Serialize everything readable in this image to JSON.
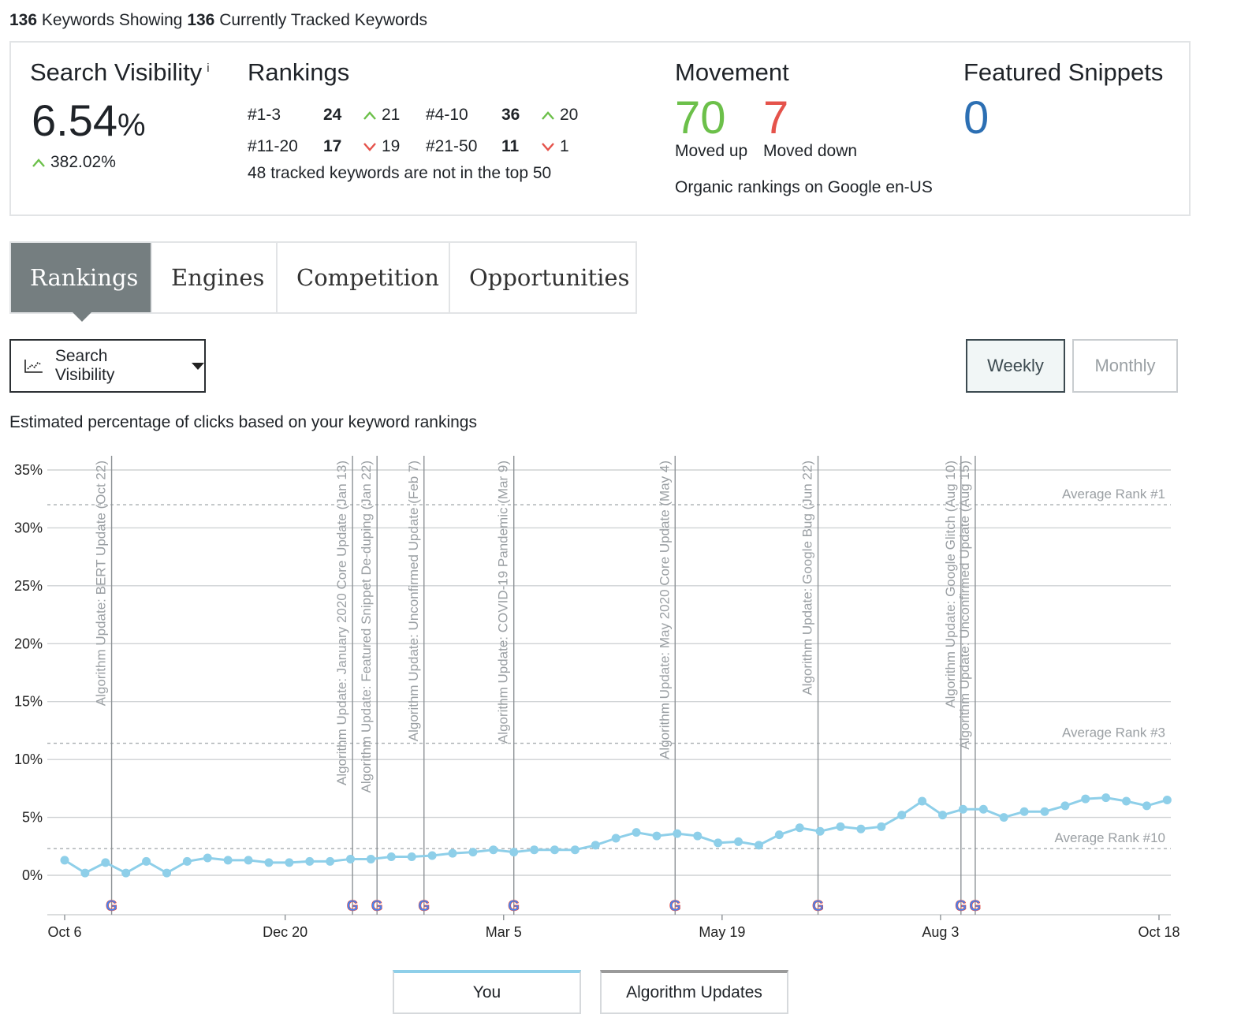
{
  "summary": {
    "count_a": "136",
    "text_a": " Keywords Showing ",
    "count_b": "136",
    "text_b": " Currently Tracked Keywords"
  },
  "search_visibility": {
    "title": "Search Visibility",
    "info": "i",
    "value": "6.54",
    "unit": "%",
    "change": "382.02%"
  },
  "rankings": {
    "title": "Rankings",
    "rows": [
      [
        {
          "label": "#1-3",
          "count": "24",
          "delta": "21",
          "dir": "up"
        },
        {
          "label": "#4-10",
          "count": "36",
          "delta": "20",
          "dir": "up"
        }
      ],
      [
        {
          "label": "#11-20",
          "count": "17",
          "delta": "19",
          "dir": "down"
        },
        {
          "label": "#21-50",
          "count": "11",
          "delta": "1",
          "dir": "down"
        }
      ]
    ],
    "note": "48 tracked keywords are not in the top 50"
  },
  "movement": {
    "title": "Movement",
    "up": "70",
    "up_label": "Moved up",
    "down": "7",
    "down_label": "Moved down",
    "note": "Organic rankings on Google en-US"
  },
  "featured_snippets": {
    "title": "Featured Snippets",
    "value": "0"
  },
  "tabs": [
    {
      "label": "Rankings",
      "active": true
    },
    {
      "label": "Engines",
      "active": false
    },
    {
      "label": "Competition",
      "active": false
    },
    {
      "label": "Opportunities",
      "active": false
    }
  ],
  "controls": {
    "metric": "Search Visibility",
    "weekly": "Weekly",
    "monthly": "Monthly",
    "selected_period": "Weekly"
  },
  "chart_subtitle": "Estimated percentage of clicks based on your keyword rankings",
  "colors": {
    "up": "#6cc04a",
    "down": "#e5534b",
    "series": "#8ecfe9",
    "snippet": "#2c6fb3"
  },
  "chart_data": {
    "type": "line",
    "y_ticks": [
      "0%",
      "5%",
      "10%",
      "15%",
      "20%",
      "25%",
      "30%",
      "35%"
    ],
    "ylim": [
      0,
      35
    ],
    "x_ticks": [
      "Oct 6",
      "Dec 20",
      "Mar 5",
      "May 19",
      "Aug 3",
      "Oct 18"
    ],
    "x_tick_weeks": [
      0,
      10.8,
      21.5,
      32.2,
      42.9,
      53.6
    ],
    "series": [
      {
        "name": "You",
        "values": [
          1.3,
          0.2,
          1.1,
          0.2,
          1.2,
          0.2,
          1.2,
          1.5,
          1.3,
          1.3,
          1.1,
          1.1,
          1.2,
          1.2,
          1.4,
          1.4,
          1.6,
          1.6,
          1.7,
          1.9,
          2.0,
          2.2,
          2.0,
          2.2,
          2.2,
          2.2,
          2.6,
          3.2,
          3.7,
          3.4,
          3.6,
          3.4,
          2.8,
          2.9,
          2.6,
          3.5,
          4.1,
          3.8,
          4.2,
          4.0,
          4.2,
          5.2,
          6.4,
          5.2,
          5.7,
          5.7,
          5.0,
          5.5,
          5.5,
          6.0,
          6.6,
          6.7,
          6.4,
          6.0,
          6.5
        ]
      }
    ],
    "reference_lines": [
      {
        "label": "Average Rank #1",
        "value": 32.0
      },
      {
        "label": "Average Rank #3",
        "value": 11.4
      },
      {
        "label": "Average Rank #10",
        "value": 2.3
      }
    ],
    "algorithm_updates": [
      {
        "label": "Algorithm Update: BERT Update (Oct 22)",
        "week": 2.3
      },
      {
        "label": "Algorithm Update: January 2020 Core Update (Jan 13)",
        "week": 14.1
      },
      {
        "label": "Algorithm Update: Featured Snippet De-duping (Jan 22)",
        "week": 15.3
      },
      {
        "label": "Algorithm Update: Unconfirmed Update (Feb 7)",
        "week": 17.6
      },
      {
        "label": "Algorithm Update: COVID-19 Pandemic (Mar 9)",
        "week": 22.0
      },
      {
        "label": "Algorithm Update: May 2020 Core Update (May 4)",
        "week": 29.9
      },
      {
        "label": "Algorithm Update: Google Bug (Jun 22)",
        "week": 36.9
      },
      {
        "label": "Algorithm Update: Google Glitch (Aug 10)",
        "week": 43.9
      },
      {
        "label": "Algorithm Update: Unconfirmed Update (Aug 15)",
        "week": 44.6
      }
    ],
    "grid": true,
    "legend": [
      "You",
      "Algorithm Updates"
    ],
    "legend_position": "bottom"
  }
}
